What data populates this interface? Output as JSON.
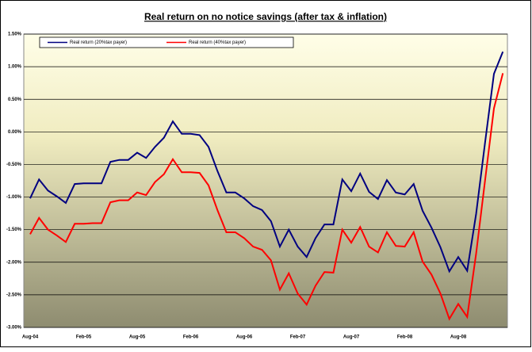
{
  "chart_data": {
    "type": "line",
    "title": "Real return on no notice savings (after tax & inflation)",
    "categories": [
      "Aug-04",
      null,
      null,
      null,
      null,
      null,
      "Feb-05",
      null,
      null,
      null,
      null,
      null,
      "Aug-05",
      null,
      null,
      null,
      null,
      null,
      "Feb-06",
      null,
      null,
      null,
      null,
      null,
      "Aug-06",
      null,
      null,
      null,
      null,
      null,
      "Feb-07",
      null,
      null,
      null,
      null,
      null,
      "Aug-07",
      null,
      null,
      null,
      null,
      null,
      "Feb-08",
      null,
      null,
      null,
      null,
      null,
      "Aug-08",
      null,
      null,
      null,
      null,
      null
    ],
    "series": [
      {
        "name": "Real return (20%tax payer)",
        "color": "#000080",
        "values": [
          -1.02,
          -0.73,
          -0.9,
          -0.99,
          -1.09,
          -0.8,
          -0.79,
          -0.79,
          -0.79,
          -0.46,
          -0.43,
          -0.43,
          -0.32,
          -0.4,
          -0.23,
          -0.09,
          0.16,
          -0.03,
          -0.03,
          -0.05,
          -0.23,
          -0.6,
          -0.93,
          -0.93,
          -1.02,
          -1.14,
          -1.2,
          -1.37,
          -1.76,
          -1.5,
          -1.76,
          -1.92,
          -1.63,
          -1.42,
          -1.42,
          -0.73,
          -0.91,
          -0.64,
          -0.92,
          -1.03,
          -0.74,
          -0.93,
          -0.96,
          -0.8,
          -1.21,
          -1.47,
          -1.77,
          -2.14,
          -1.92,
          -2.13,
          -1.26,
          -0.17,
          0.89,
          1.23
        ]
      },
      {
        "name": "Real return (40%tax payer)",
        "color": "#ff0000",
        "values": [
          -1.57,
          -1.32,
          -1.5,
          -1.59,
          -1.69,
          -1.41,
          -1.41,
          -1.4,
          -1.4,
          -1.08,
          -1.05,
          -1.05,
          -0.93,
          -0.97,
          -0.77,
          -0.65,
          -0.42,
          -0.62,
          -0.62,
          -0.63,
          -0.82,
          -1.2,
          -1.54,
          -1.54,
          -1.63,
          -1.76,
          -1.81,
          -1.97,
          -2.42,
          -2.17,
          -2.48,
          -2.65,
          -2.36,
          -2.15,
          -2.16,
          -1.5,
          -1.7,
          -1.46,
          -1.76,
          -1.85,
          -1.54,
          -1.75,
          -1.76,
          -1.54,
          -1.99,
          -2.19,
          -2.48,
          -2.87,
          -2.64,
          -2.84,
          -1.87,
          -0.75,
          0.36,
          0.9
        ]
      }
    ],
    "ylim": [
      -3,
      1.5
    ],
    "yticks": [
      {
        "value": -3,
        "label": "-3.00%"
      },
      {
        "value": -2.5,
        "label": "-2.50%"
      },
      {
        "value": -2,
        "label": "-2.00%"
      },
      {
        "value": -1.5,
        "label": "-1.50%"
      },
      {
        "value": -1,
        "label": "-1.00%"
      },
      {
        "value": -0.5,
        "label": "-0.50%"
      },
      {
        "value": 0,
        "label": "0.00%"
      },
      {
        "value": 0.5,
        "label": "0.50%"
      },
      {
        "value": 1,
        "label": "1.00%"
      },
      {
        "value": 1.5,
        "label": "1.50%"
      }
    ],
    "grid": true,
    "legend": "top"
  }
}
